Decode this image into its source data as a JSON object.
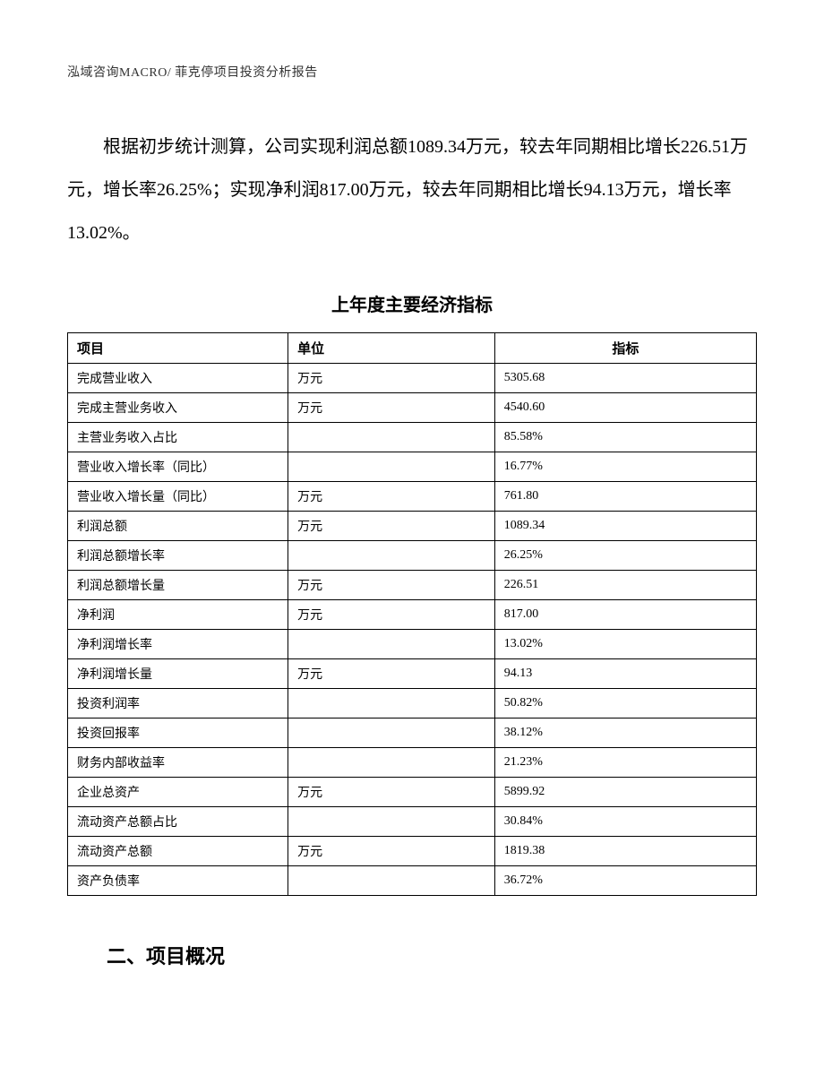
{
  "header": {
    "text": "泓域咨询MACRO/    菲克停项目投资分析报告"
  },
  "paragraph": {
    "text": "根据初步统计测算，公司实现利润总额1089.34万元，较去年同期相比增长226.51万元，增长率26.25%；实现净利润817.00万元，较去年同期相比增长94.13万元，增长率13.02%。"
  },
  "table": {
    "title": "上年度主要经济指标",
    "columns": {
      "item": "项目",
      "unit": "单位",
      "value": "指标"
    },
    "rows": [
      {
        "item": "完成营业收入",
        "unit": "万元",
        "value": "5305.68"
      },
      {
        "item": "完成主营业务收入",
        "unit": "万元",
        "value": "4540.60"
      },
      {
        "item": "主营业务收入占比",
        "unit": "",
        "value": "85.58%"
      },
      {
        "item": "营业收入增长率（同比）",
        "unit": "",
        "value": "16.77%"
      },
      {
        "item": "营业收入增长量（同比）",
        "unit": "万元",
        "value": "761.80"
      },
      {
        "item": "利润总额",
        "unit": "万元",
        "value": "1089.34"
      },
      {
        "item": "利润总额增长率",
        "unit": "",
        "value": "26.25%"
      },
      {
        "item": "利润总额增长量",
        "unit": "万元",
        "value": "226.51"
      },
      {
        "item": "净利润",
        "unit": "万元",
        "value": "817.00"
      },
      {
        "item": "净利润增长率",
        "unit": "",
        "value": "13.02%"
      },
      {
        "item": "净利润增长量",
        "unit": "万元",
        "value": "94.13"
      },
      {
        "item": "投资利润率",
        "unit": "",
        "value": "50.82%"
      },
      {
        "item": "投资回报率",
        "unit": "",
        "value": "38.12%"
      },
      {
        "item": "财务内部收益率",
        "unit": "",
        "value": "21.23%"
      },
      {
        "item": "企业总资产",
        "unit": "万元",
        "value": "5899.92"
      },
      {
        "item": "流动资产总额占比",
        "unit": "",
        "value": "30.84%"
      },
      {
        "item": "流动资产总额",
        "unit": "万元",
        "value": "1819.38"
      },
      {
        "item": "资产负债率",
        "unit": "",
        "value": "36.72%"
      }
    ]
  },
  "section": {
    "heading": "二、项目概况"
  }
}
